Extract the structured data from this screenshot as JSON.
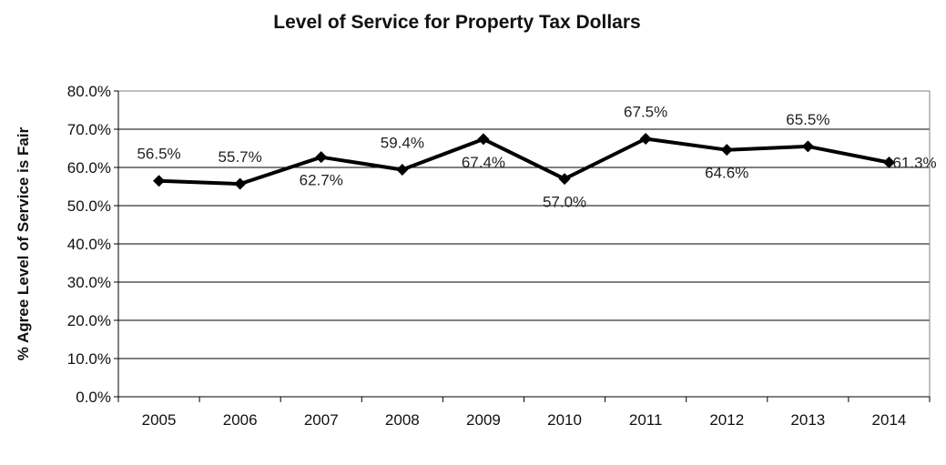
{
  "chart_data": {
    "type": "line",
    "title": "Level of Service for Property Tax Dollars",
    "xlabel": "",
    "ylabel": "% Agree Level  of Service is Fair",
    "categories": [
      "2005",
      "2006",
      "2007",
      "2008",
      "2009",
      "2010",
      "2011",
      "2012",
      "2013",
      "2014"
    ],
    "series": [
      {
        "values": [
          56.5,
          55.7,
          62.7,
          59.4,
          67.4,
          57.0,
          67.5,
          64.6,
          65.5,
          61.3
        ],
        "data_labels": [
          "56.5%",
          "55.7%",
          "62.7%",
          "59.4%",
          "67.4%",
          "57.0%",
          "67.5%",
          "64.6%",
          "65.5%",
          "61.3%"
        ],
        "label_positions": [
          "above",
          "above",
          "below",
          "above",
          "below",
          "below",
          "above",
          "below",
          "above",
          "right"
        ]
      }
    ],
    "ylim": [
      0,
      80
    ],
    "yticks": [
      0,
      10,
      20,
      30,
      40,
      50,
      60,
      70,
      80
    ],
    "ytick_labels": [
      "0.0%",
      "10.0%",
      "20.0%",
      "30.0%",
      "40.0%",
      "50.0%",
      "60.0%",
      "70.0%",
      "80.0%"
    ],
    "grid": true,
    "legend": "none",
    "line_color": "#000000",
    "marker": "diamond",
    "gridline_color": "#000000",
    "plot_border_color": "#808080"
  }
}
